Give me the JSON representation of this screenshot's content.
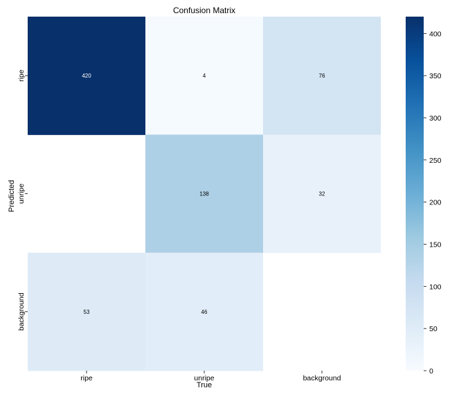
{
  "chart_data": {
    "type": "heatmap",
    "title": "Confusion Matrix",
    "xlabel": "True",
    "ylabel": "Predicted",
    "x_categories": [
      "ripe",
      "unripe",
      "background"
    ],
    "y_categories": [
      "ripe",
      "unripe",
      "background"
    ],
    "values": [
      [
        420,
        4,
        76
      ],
      [
        null,
        138,
        32
      ],
      [
        53,
        46,
        null
      ]
    ],
    "colormap": "Blues",
    "color_min": "#f7fbff",
    "color_max": "#08306b",
    "vmin": 0,
    "vmax": 420,
    "colorbar_ticks": [
      0,
      50,
      100,
      150,
      200,
      250,
      300,
      350,
      400
    ]
  }
}
